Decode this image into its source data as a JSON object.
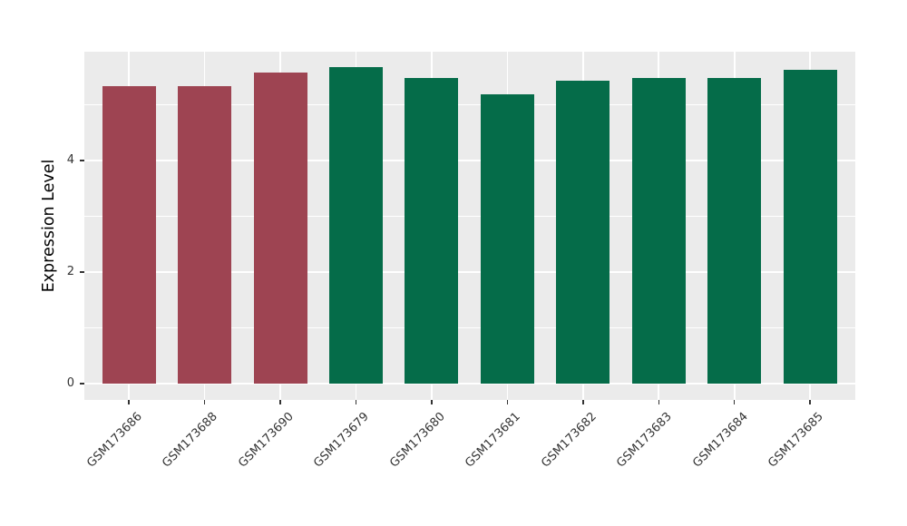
{
  "chart_data": {
    "type": "bar",
    "title": "",
    "xlabel": "",
    "ylabel": "Expression Level",
    "categories": [
      "GSM173686",
      "GSM173688",
      "GSM173690",
      "GSM173679",
      "GSM173680",
      "GSM173681",
      "GSM173682",
      "GSM173683",
      "GSM173684",
      "GSM173685"
    ],
    "values": [
      5.33,
      5.33,
      5.58,
      5.67,
      5.48,
      5.19,
      5.43,
      5.48,
      5.48,
      5.62
    ],
    "bar_colors": [
      "#9e4452",
      "#9e4452",
      "#9e4452",
      "#056c49",
      "#056c49",
      "#056c49",
      "#056c49",
      "#056c49",
      "#056c49",
      "#056c49"
    ],
    "group_palette": {
      "left_group": "#9e4452",
      "right_group": "#056c49"
    },
    "ylim": [
      -0.29,
      5.95
    ],
    "yticks_major": [
      0,
      2,
      4
    ],
    "ytick_labels": [
      "0",
      "2",
      "4"
    ],
    "yticks_minor": [
      1,
      3,
      5
    ],
    "grid": true,
    "legend_position": "none",
    "panel_background": "#ebebeb",
    "gridline_color": "#ffffff",
    "axis_text_color": "#333333"
  }
}
